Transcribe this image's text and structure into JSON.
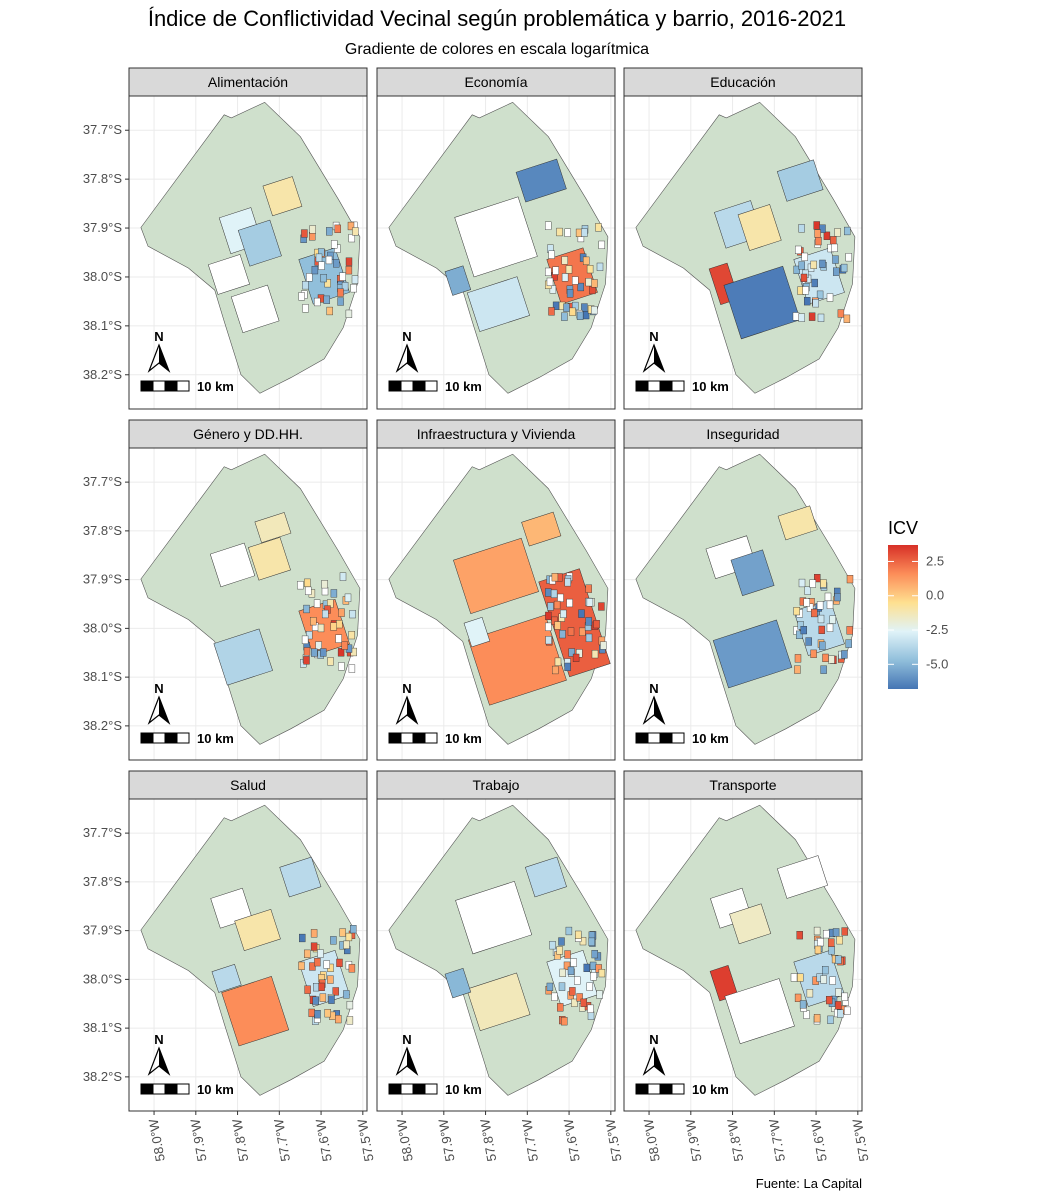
{
  "chart_data": {
    "type": "choropleth",
    "title": "Índice de Conflictividad Vecinal según problemática y barrio, 2016-2021",
    "subtitle": "Gradiente de colores en escala logarítmica",
    "caption": "Fuente: La Capital",
    "facets": [
      "Alimentación",
      "Economía",
      "Educación",
      "Género y DD.HH.",
      "Infraestructura y Vivienda",
      "Inseguridad",
      "Salud",
      "Trabajo",
      "Transporte"
    ],
    "y_ticks": [
      -37.7,
      -37.8,
      -37.9,
      -38.0,
      -38.1,
      -38.2
    ],
    "y_tick_labels": [
      "37.7°S",
      "37.8°S",
      "37.9°S",
      "38.0°S",
      "38.1°S",
      "38.2°S"
    ],
    "x_ticks": [
      -58.0,
      -57.9,
      -57.8,
      -57.7,
      -57.6,
      -57.5
    ],
    "x_tick_labels": [
      "58.0°W",
      "57.9°W",
      "57.8°W",
      "57.7°W",
      "57.6°W",
      "57.5°W"
    ],
    "xlim": [
      -58.06,
      -57.49
    ],
    "ylim": [
      -38.27,
      -37.63
    ],
    "legend": {
      "title": "ICV",
      "position": "right",
      "scale": "log",
      "breaks": [
        2.5,
        0.0,
        -2.5,
        -5.0
      ],
      "break_labels": [
        "2.5",
        "0.0",
        "-2.5",
        "-5.0"
      ],
      "range": [
        -6.8,
        3.7
      ],
      "colors": [
        "#4575b4",
        "#91bfdb",
        "#e0f3f8",
        "#fee090",
        "#fc8d59",
        "#d73027"
      ]
    },
    "scale_bar_label": "10 km",
    "north_arrow_label": "N",
    "no_data_color": "#cfe0cc",
    "grid": true
  }
}
